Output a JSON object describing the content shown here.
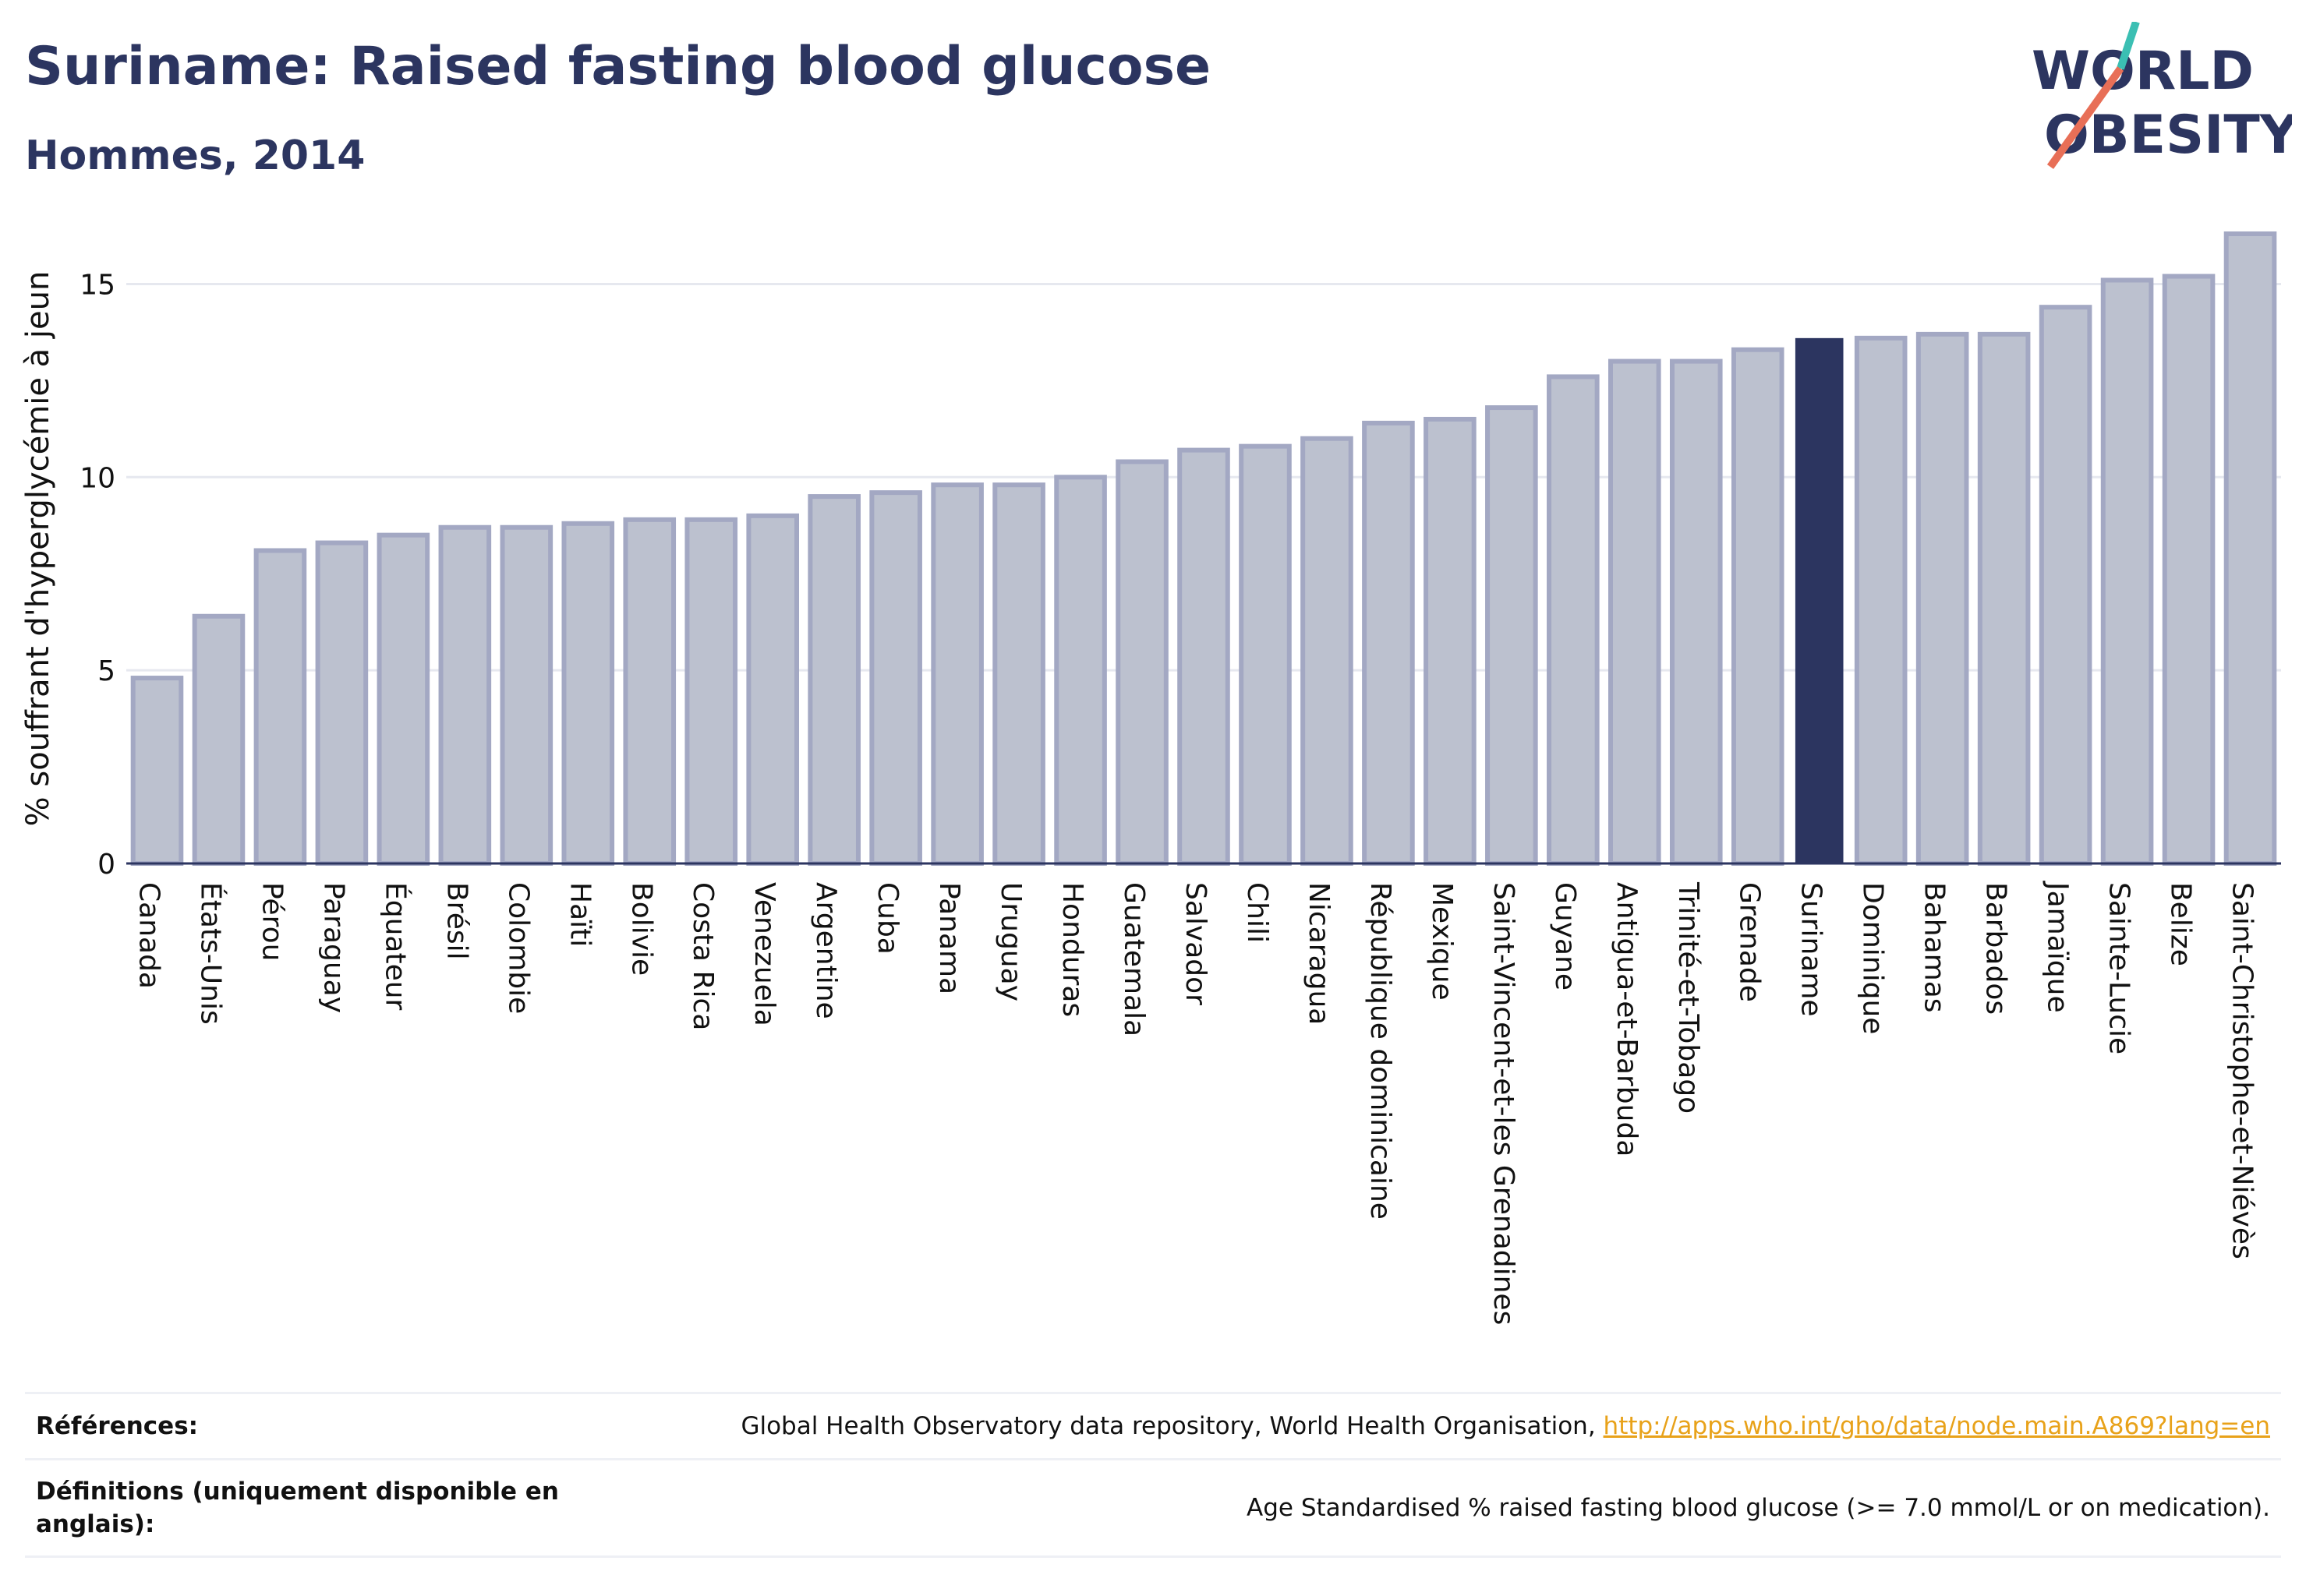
{
  "header": {
    "title": "Suriname: Raised fasting blood glucose",
    "subtitle": "Hommes, 2014"
  },
  "logo": {
    "line1": "WORLD",
    "line2": "OBESITY"
  },
  "colors": {
    "bar_fill": "#bcc1cf",
    "bar_stroke": "#a3a8c3",
    "highlight": "#2c3560",
    "axis": "#2c3560",
    "grid": "#e6e8ef",
    "link": "#e8a21a",
    "logo_teal": "#3bbfb3",
    "logo_coral": "#e86f57"
  },
  "chart_data": {
    "type": "bar",
    "title": "Suriname: Raised fasting blood glucose",
    "subtitle": "Hommes, 2014",
    "ylabel": "% souffrant d'hyperglycémie à jeun",
    "xlabel": "",
    "ylim": [
      0,
      16.3
    ],
    "yticks": [
      0,
      5,
      10,
      15
    ],
    "grid": true,
    "highlight": "Suriname",
    "categories": [
      "Canada",
      "États-Unis",
      "Pérou",
      "Paraguay",
      "Équateur",
      "Brésil",
      "Colombie",
      "Haïti",
      "Bolivie",
      "Costa Rica",
      "Venezuela",
      "Argentine",
      "Cuba",
      "Panama",
      "Uruguay",
      "Honduras",
      "Guatemala",
      "Salvador",
      "Chili",
      "Nicaragua",
      "République dominicaine",
      "Mexique",
      "Saint-Vincent-et-les Grenadines",
      "Guyane",
      "Antigua-et-Barbuda",
      "Trinité-et-Tobago",
      "Grenade",
      "Suriname",
      "Dominique",
      "Bahamas",
      "Barbados",
      "Jamaïque",
      "Sainte-Lucie",
      "Belize",
      "Saint-Christophe-et-Niévès"
    ],
    "values": [
      4.8,
      6.4,
      8.1,
      8.3,
      8.5,
      8.7,
      8.7,
      8.8,
      8.9,
      8.9,
      9.0,
      9.5,
      9.6,
      9.8,
      9.8,
      10.0,
      10.4,
      10.7,
      10.8,
      11.0,
      11.4,
      11.5,
      11.8,
      12.6,
      13.0,
      13.0,
      13.3,
      13.6,
      13.6,
      13.7,
      13.7,
      14.4,
      15.1,
      15.2,
      16.3
    ]
  },
  "footer": {
    "references_label": "Références:",
    "references_text": "Global Health Observatory data repository, World Health Organisation, ",
    "references_link": "http://apps.who.int/gho/data/node.main.A869?lang=en",
    "definitions_label": "Définitions (uniquement disponible en anglais):",
    "definitions_text": "Age Standardised % raised fasting blood glucose (>= 7.0 mmol/L or on medication)."
  }
}
